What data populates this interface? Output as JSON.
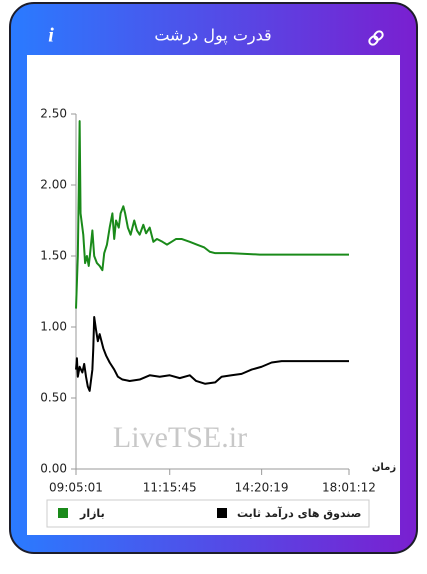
{
  "info_icon": "i",
  "chart_data": {
    "type": "line",
    "title": "قدرت پول درشت",
    "watermark": "LiveTSE.ir",
    "x_label": "زمان",
    "xlim": [
      0,
      3
    ],
    "xticks": [
      {
        "value": 0,
        "label": "09:05:01"
      },
      {
        "value": 1.03,
        "label": "11:15:45"
      },
      {
        "value": 2.04,
        "label": "14:20:19"
      },
      {
        "value": 3,
        "label": "18:01:12"
      }
    ],
    "ylim": [
      0,
      2.5
    ],
    "yticks": [
      {
        "value": 0,
        "label": "0.00"
      },
      {
        "value": 0.5,
        "label": "0.50"
      },
      {
        "value": 1,
        "label": "1.00"
      },
      {
        "value": 1.5,
        "label": "1.50"
      },
      {
        "value": 2,
        "label": "2.00"
      },
      {
        "value": 2.5,
        "label": "2.50"
      }
    ],
    "grid": false,
    "series": [
      {
        "name": "بازار",
        "color": "#1a8a1a",
        "x": [
          0,
          0.02,
          0.03,
          0.04,
          0.05,
          0.08,
          0.1,
          0.12,
          0.14,
          0.16,
          0.18,
          0.2,
          0.23,
          0.26,
          0.29,
          0.31,
          0.34,
          0.37,
          0.4,
          0.42,
          0.44,
          0.47,
          0.49,
          0.52,
          0.54,
          0.57,
          0.6,
          0.64,
          0.67,
          0.7,
          0.74,
          0.77,
          0.81,
          0.85,
          0.89,
          0.95,
          1.0,
          1.05,
          1.1,
          1.16,
          1.25,
          1.33,
          1.41,
          1.47,
          1.53,
          1.69,
          2.02,
          2.46,
          3.0
        ],
        "values": [
          1.13,
          1.5,
          1.95,
          2.45,
          1.8,
          1.65,
          1.45,
          1.5,
          1.43,
          1.55,
          1.68,
          1.5,
          1.45,
          1.43,
          1.4,
          1.52,
          1.58,
          1.7,
          1.8,
          1.62,
          1.75,
          1.7,
          1.8,
          1.85,
          1.8,
          1.7,
          1.65,
          1.75,
          1.68,
          1.65,
          1.72,
          1.66,
          1.7,
          1.6,
          1.62,
          1.6,
          1.58,
          1.6,
          1.62,
          1.62,
          1.6,
          1.58,
          1.56,
          1.53,
          1.52,
          1.52,
          1.51,
          1.51,
          1.51
        ]
      },
      {
        "name": "صندوق های درآمد ثابت",
        "color": "#000000",
        "x": [
          0,
          0.01,
          0.02,
          0.04,
          0.07,
          0.09,
          0.11,
          0.13,
          0.15,
          0.18,
          0.19,
          0.2,
          0.22,
          0.24,
          0.26,
          0.3,
          0.33,
          0.37,
          0.42,
          0.46,
          0.51,
          0.59,
          0.7,
          0.81,
          0.92,
          1.03,
          1.14,
          1.25,
          1.32,
          1.42,
          1.53,
          1.6,
          1.71,
          1.82,
          1.93,
          2.04,
          2.15,
          2.26,
          2.46,
          3.0
        ],
        "values": [
          0.7,
          0.78,
          0.65,
          0.72,
          0.68,
          0.74,
          0.65,
          0.58,
          0.55,
          0.7,
          0.85,
          1.07,
          0.98,
          0.9,
          0.95,
          0.85,
          0.8,
          0.75,
          0.7,
          0.65,
          0.63,
          0.62,
          0.63,
          0.66,
          0.65,
          0.66,
          0.64,
          0.66,
          0.62,
          0.6,
          0.61,
          0.65,
          0.66,
          0.67,
          0.7,
          0.72,
          0.75,
          0.76,
          0.76,
          0.76
        ]
      }
    ]
  }
}
